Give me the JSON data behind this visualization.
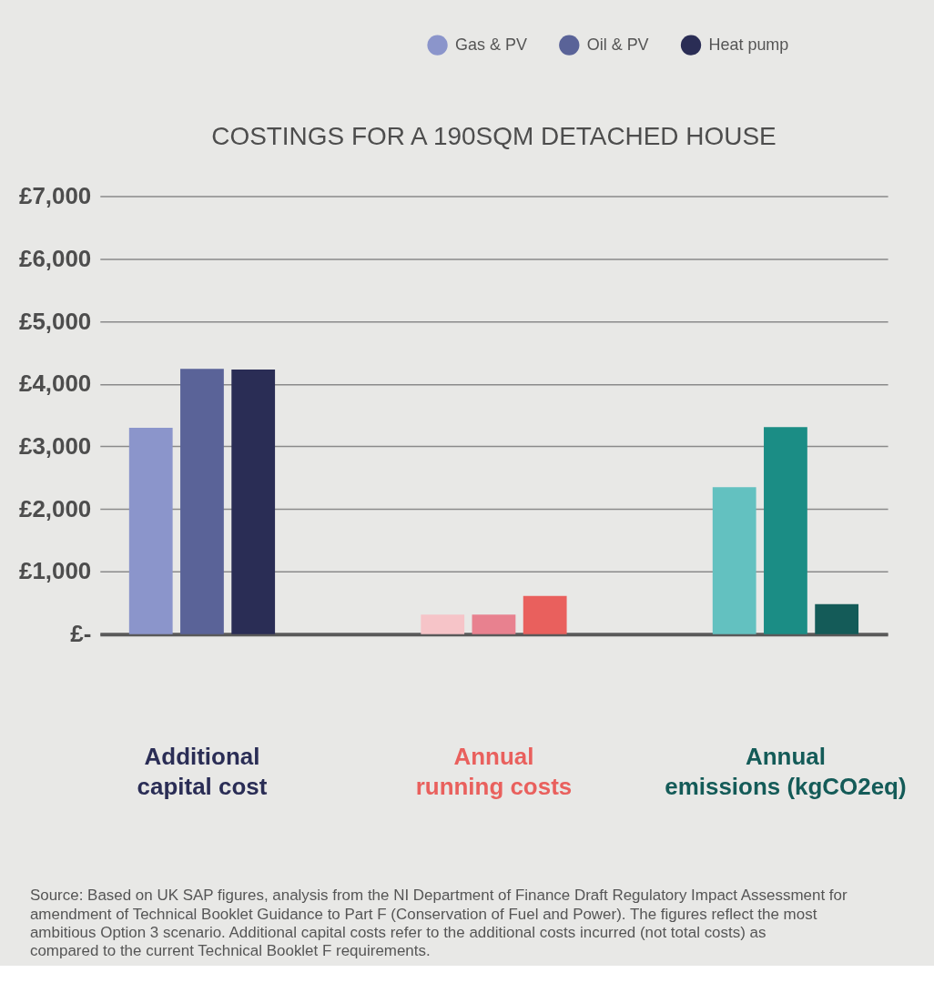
{
  "chart_data": {
    "type": "bar",
    "title": "COSTINGS FOR A 190SQM DETACHED HOUSE",
    "categories": [
      "Additional capital cost",
      "Annual running costs",
      "Annual emissions (kgCO2eq)"
    ],
    "series": [
      {
        "name": "Gas & PV",
        "color": "#8b95cb",
        "colors": [
          "#8b95cb",
          "#f6c4c8",
          "#63c1c0"
        ],
        "values": [
          3300,
          310,
          2350
        ]
      },
      {
        "name": "Oil & PV",
        "color": "#5a6398",
        "colors": [
          "#5a6398",
          "#e8818f",
          "#1b8d85"
        ],
        "values": [
          4240,
          310,
          3310
        ]
      },
      {
        "name": "Heat pump",
        "color": "#2a2d55",
        "colors": [
          "#2a2d55",
          "#e9605d",
          "#145b58"
        ],
        "values": [
          4230,
          610,
          480
        ]
      }
    ],
    "ylim": [
      0,
      7000
    ],
    "yticks": [
      {
        "value": 0,
        "label": "£-"
      },
      {
        "value": 1000,
        "label": "£1,000"
      },
      {
        "value": 2000,
        "label": "£2,000"
      },
      {
        "value": 3000,
        "label": "£3,000"
      },
      {
        "value": 4000,
        "label": "£4,000"
      },
      {
        "value": 5000,
        "label": "£5,000"
      },
      {
        "value": 6000,
        "label": "£6,000"
      },
      {
        "value": 7000,
        "label": "£7,000"
      }
    ],
    "grid": "y",
    "legend": "top right",
    "annotations": [
      "Source: Based on UK SAP figures, analysis from the NI Department of Finance Draft Regulatory Impact Assessment for amendment of Technical Booklet Guidance to Part F (Conservation of Fuel and Power). The figures reflect the most ambitious Option 3 scenario. Additional capital costs refer to the additional costs incurred (not total costs) as compared to the current Technical Booklet F requirements."
    ]
  }
}
